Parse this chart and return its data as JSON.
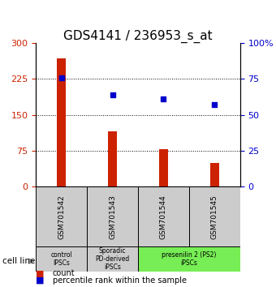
{
  "title": "GDS4141 / 236953_s_at",
  "samples": [
    "GSM701542",
    "GSM701543",
    "GSM701544",
    "GSM701545"
  ],
  "counts": [
    268,
    115,
    78,
    50
  ],
  "percentiles": [
    76,
    64,
    61,
    57
  ],
  "left_ylim": [
    0,
    300
  ],
  "right_ylim": [
    0,
    100
  ],
  "left_yticks": [
    0,
    75,
    150,
    225,
    300
  ],
  "right_yticks": [
    0,
    25,
    50,
    75,
    100
  ],
  "right_yticklabels": [
    "0",
    "25",
    "50",
    "75",
    "100%"
  ],
  "bar_color": "#cc2200",
  "dot_color": "#0000cc",
  "groups": [
    {
      "label": "control\nIPSCs",
      "start": 0,
      "end": 1,
      "color": "#cccccc"
    },
    {
      "label": "Sporadic\nPD-derived\niPSCs",
      "start": 1,
      "end": 2,
      "color": "#cccccc"
    },
    {
      "label": "presenilin 2 (PS2)\niPSCs",
      "start": 2,
      "end": 4,
      "color": "#77ee55"
    }
  ],
  "cell_line_label": "cell line",
  "legend_count_label": "count",
  "legend_pct_label": "percentile rank within the sample",
  "title_fontsize": 11,
  "tick_fontsize": 8,
  "bar_width": 0.18
}
